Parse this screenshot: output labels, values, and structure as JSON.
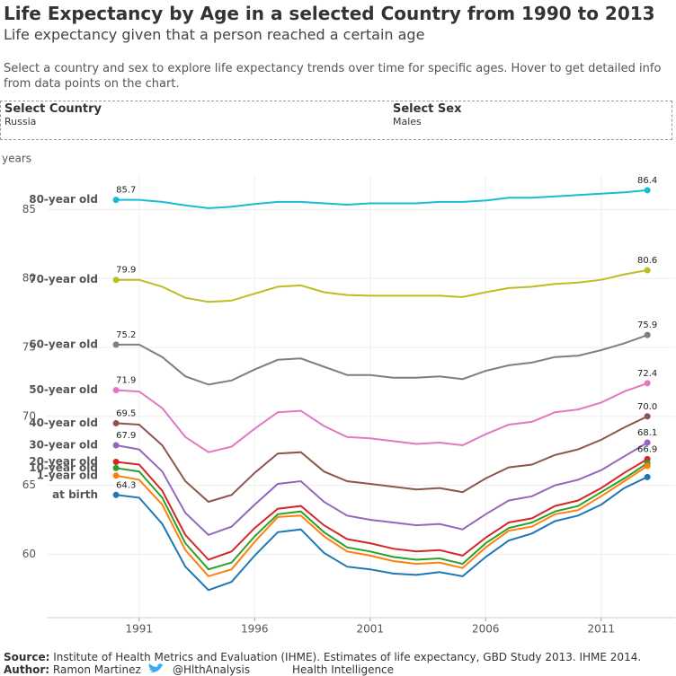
{
  "header": {
    "title": "Life Expectancy by Age in a selected Country from 1990 to 2013",
    "subtitle": "Life expectancy given that a person reached a certain age",
    "description": "Select a country and sex to explore life expectancy trends over time for specific ages. Hover to get detailed info from data points on the chart."
  },
  "controls": [
    {
      "label": "Select Country",
      "value": "Russia"
    },
    {
      "label": "Select Sex",
      "value": "Males"
    }
  ],
  "chart_data": {
    "type": "line",
    "y_label": "years",
    "x": [
      1990,
      1991,
      1992,
      1993,
      1994,
      1995,
      1996,
      1997,
      1998,
      1999,
      2000,
      2001,
      2002,
      2003,
      2004,
      2005,
      2006,
      2007,
      2008,
      2009,
      2010,
      2011,
      2012,
      2013
    ],
    "xlim": [
      1987,
      2014.2
    ],
    "xticks": [
      1991,
      1996,
      2001,
      2006,
      2011
    ],
    "ylim": [
      55.4,
      87.5
    ],
    "yticks": [
      60,
      65,
      70,
      75,
      80,
      85
    ],
    "grid": true,
    "series": [
      {
        "name": "80-year old",
        "color": "#17becf",
        "values": [
          85.7,
          85.7,
          85.55,
          85.3,
          85.1,
          85.2,
          85.4,
          85.55,
          85.55,
          85.45,
          85.35,
          85.45,
          85.45,
          85.45,
          85.55,
          85.55,
          85.65,
          85.85,
          85.85,
          85.95,
          86.05,
          86.15,
          86.25,
          86.4
        ]
      },
      {
        "name": "70-year old",
        "color": "#bcbd22",
        "values": [
          79.9,
          79.9,
          79.4,
          78.6,
          78.3,
          78.4,
          78.9,
          79.4,
          79.5,
          79.0,
          78.8,
          78.75,
          78.75,
          78.75,
          78.75,
          78.65,
          79.0,
          79.3,
          79.4,
          79.6,
          79.7,
          79.9,
          80.3,
          80.6
        ]
      },
      {
        "name": "60-year old",
        "color": "#7f7f7f",
        "values": [
          75.2,
          75.2,
          74.3,
          72.9,
          72.3,
          72.6,
          73.4,
          74.1,
          74.2,
          73.6,
          73.0,
          73.0,
          72.8,
          72.8,
          72.9,
          72.7,
          73.3,
          73.7,
          73.9,
          74.3,
          74.4,
          74.8,
          75.3,
          75.9
        ]
      },
      {
        "name": "50-year old",
        "color": "#e377c2",
        "values": [
          71.9,
          71.8,
          70.6,
          68.5,
          67.4,
          67.8,
          69.1,
          70.3,
          70.4,
          69.3,
          68.5,
          68.4,
          68.2,
          68.0,
          68.1,
          67.9,
          68.7,
          69.4,
          69.6,
          70.3,
          70.5,
          71.0,
          71.8,
          72.4
        ]
      },
      {
        "name": "40-year old",
        "color": "#8c564b",
        "values": [
          69.5,
          69.4,
          67.9,
          65.3,
          63.8,
          64.3,
          65.9,
          67.3,
          67.4,
          66.0,
          65.3,
          65.1,
          64.9,
          64.7,
          64.8,
          64.5,
          65.5,
          66.3,
          66.5,
          67.2,
          67.6,
          68.3,
          69.2,
          70.0
        ],
        "value_labels": [
          "69.5",
          null,
          null,
          null,
          null,
          null,
          null,
          null,
          null,
          null,
          null,
          null,
          null,
          null,
          null,
          null,
          null,
          null,
          null,
          null,
          null,
          null,
          null,
          "70.0"
        ]
      },
      {
        "name": "30-year old",
        "color": "#9467bd",
        "values": [
          67.9,
          67.6,
          66.0,
          63.0,
          61.4,
          62.0,
          63.6,
          65.1,
          65.3,
          63.8,
          62.8,
          62.5,
          62.3,
          62.1,
          62.2,
          61.8,
          62.9,
          63.9,
          64.2,
          65.0,
          65.4,
          66.1,
          67.1,
          68.1
        ]
      },
      {
        "name": "20-year old",
        "color": "#d62728",
        "values": [
          66.7,
          66.5,
          64.6,
          61.4,
          59.6,
          60.2,
          61.9,
          63.3,
          63.5,
          62.1,
          61.1,
          60.8,
          60.4,
          60.2,
          60.3,
          59.9,
          61.2,
          62.3,
          62.6,
          63.5,
          63.9,
          64.8,
          65.9,
          66.9
        ]
      },
      {
        "name": "10-year old",
        "color": "#2ca02c",
        "values": [
          66.25,
          66.0,
          64.1,
          60.8,
          58.9,
          59.4,
          61.3,
          62.9,
          63.1,
          61.6,
          60.5,
          60.2,
          59.8,
          59.6,
          59.7,
          59.3,
          60.8,
          61.9,
          62.3,
          63.1,
          63.5,
          64.5,
          65.5,
          66.6
        ]
      },
      {
        "name": "1-year old",
        "color": "#ff7f0e",
        "values": [
          65.7,
          65.4,
          63.6,
          60.3,
          58.4,
          58.9,
          60.9,
          62.7,
          62.8,
          61.3,
          60.2,
          59.9,
          59.5,
          59.3,
          59.4,
          59.0,
          60.5,
          61.7,
          62.0,
          62.9,
          63.2,
          64.2,
          65.3,
          66.4
        ]
      },
      {
        "name": "at birth",
        "color": "#1f77b4",
        "values": [
          64.3,
          64.1,
          62.2,
          59.1,
          57.4,
          58.0,
          59.9,
          61.6,
          61.8,
          60.1,
          59.1,
          58.9,
          58.6,
          58.5,
          58.7,
          58.4,
          59.8,
          61.0,
          61.5,
          62.4,
          62.8,
          63.6,
          64.8,
          65.6
        ]
      }
    ],
    "labeled_series_start": [
      0,
      1,
      2,
      3,
      4,
      5,
      9
    ],
    "labeled_series_end": [
      0,
      1,
      2,
      3,
      4,
      5,
      6
    ]
  },
  "footer": {
    "source_label": "Source:",
    "source": "Institute of Health Metrics and Evaluation (IHME). Estimates of life expectancy, GBD Study 2013. IHME 2014.",
    "author_label": "Author:",
    "author": "Ramon Martinez",
    "twitter": "@HlthAnalysis",
    "org": "Health Intelligence"
  }
}
